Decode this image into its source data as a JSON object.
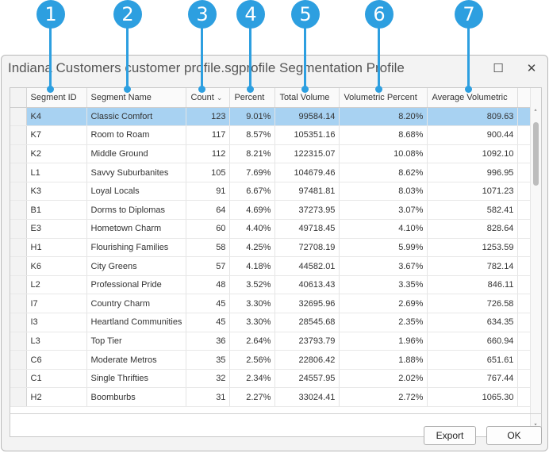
{
  "callouts": [
    "1",
    "2",
    "3",
    "4",
    "5",
    "6",
    "7"
  ],
  "window": {
    "title": "Indiana Customers customer profile.sgprofile Segmentation Profile",
    "maximize_glyph": "☐",
    "close_glyph": "✕"
  },
  "table": {
    "columns": [
      "Segment ID",
      "Segment Name",
      "Count",
      "Percent",
      "Total Volume",
      "Volumetric Percent",
      "Average Volumetric"
    ],
    "sort_indicator": "⌄",
    "rows": [
      [
        "K4",
        "Classic Comfort",
        "123",
        "9.01%",
        "99584.14",
        "8.20%",
        "809.63"
      ],
      [
        "K7",
        "Room to Roam",
        "117",
        "8.57%",
        "105351.16",
        "8.68%",
        "900.44"
      ],
      [
        "K2",
        "Middle Ground",
        "112",
        "8.21%",
        "122315.07",
        "10.08%",
        "1092.10"
      ],
      [
        "L1",
        "Savvy Suburbanites",
        "105",
        "7.69%",
        "104679.46",
        "8.62%",
        "996.95"
      ],
      [
        "K3",
        "Loyal Locals",
        "91",
        "6.67%",
        "97481.81",
        "8.03%",
        "1071.23"
      ],
      [
        "B1",
        "Dorms to Diplomas",
        "64",
        "4.69%",
        "37273.95",
        "3.07%",
        "582.41"
      ],
      [
        "E3",
        "Hometown Charm",
        "60",
        "4.40%",
        "49718.45",
        "4.10%",
        "828.64"
      ],
      [
        "H1",
        "Flourishing Families",
        "58",
        "4.25%",
        "72708.19",
        "5.99%",
        "1253.59"
      ],
      [
        "K6",
        "City Greens",
        "57",
        "4.18%",
        "44582.01",
        "3.67%",
        "782.14"
      ],
      [
        "L2",
        "Professional Pride",
        "48",
        "3.52%",
        "40613.43",
        "3.35%",
        "846.11"
      ],
      [
        "I7",
        "Country Charm",
        "45",
        "3.30%",
        "32695.96",
        "2.69%",
        "726.58"
      ],
      [
        "I3",
        "Heartland Communities",
        "45",
        "3.30%",
        "28545.68",
        "2.35%",
        "634.35"
      ],
      [
        "L3",
        "Top Tier",
        "36",
        "2.64%",
        "23793.79",
        "1.96%",
        "660.94"
      ],
      [
        "C6",
        "Moderate Metros",
        "35",
        "2.56%",
        "22806.42",
        "1.88%",
        "651.61"
      ],
      [
        "C1",
        "Single Thrifties",
        "32",
        "2.34%",
        "24557.95",
        "2.02%",
        "767.44"
      ],
      [
        "H2",
        "Boomburbs",
        "31",
        "2.27%",
        "33024.41",
        "2.72%",
        "1065.30"
      ]
    ],
    "selected_row": 0,
    "scroll_up_glyph": "˄",
    "scroll_down_glyph": "˅"
  },
  "buttons": {
    "export": "Export",
    "ok": "OK"
  },
  "colors": {
    "callout": "#2d9fe0",
    "selected_row": "#a8d2f2"
  }
}
